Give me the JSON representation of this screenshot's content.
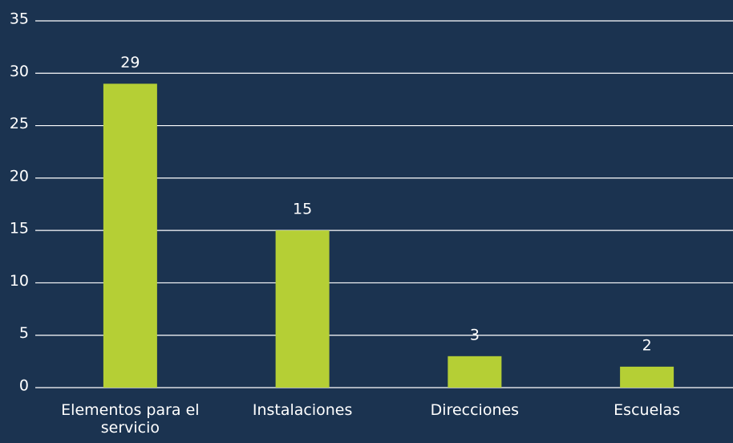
{
  "chart_data": {
    "type": "bar",
    "categories": [
      "Elementos para el servicio",
      "Instalaciones",
      "Direcciones",
      "Escuelas"
    ],
    "values": [
      29,
      15,
      3,
      2
    ],
    "color": "#b5cf35",
    "ylim": [
      0,
      35
    ],
    "yticks": [
      0,
      5,
      10,
      15,
      20,
      25,
      30,
      35
    ],
    "grid": true
  }
}
